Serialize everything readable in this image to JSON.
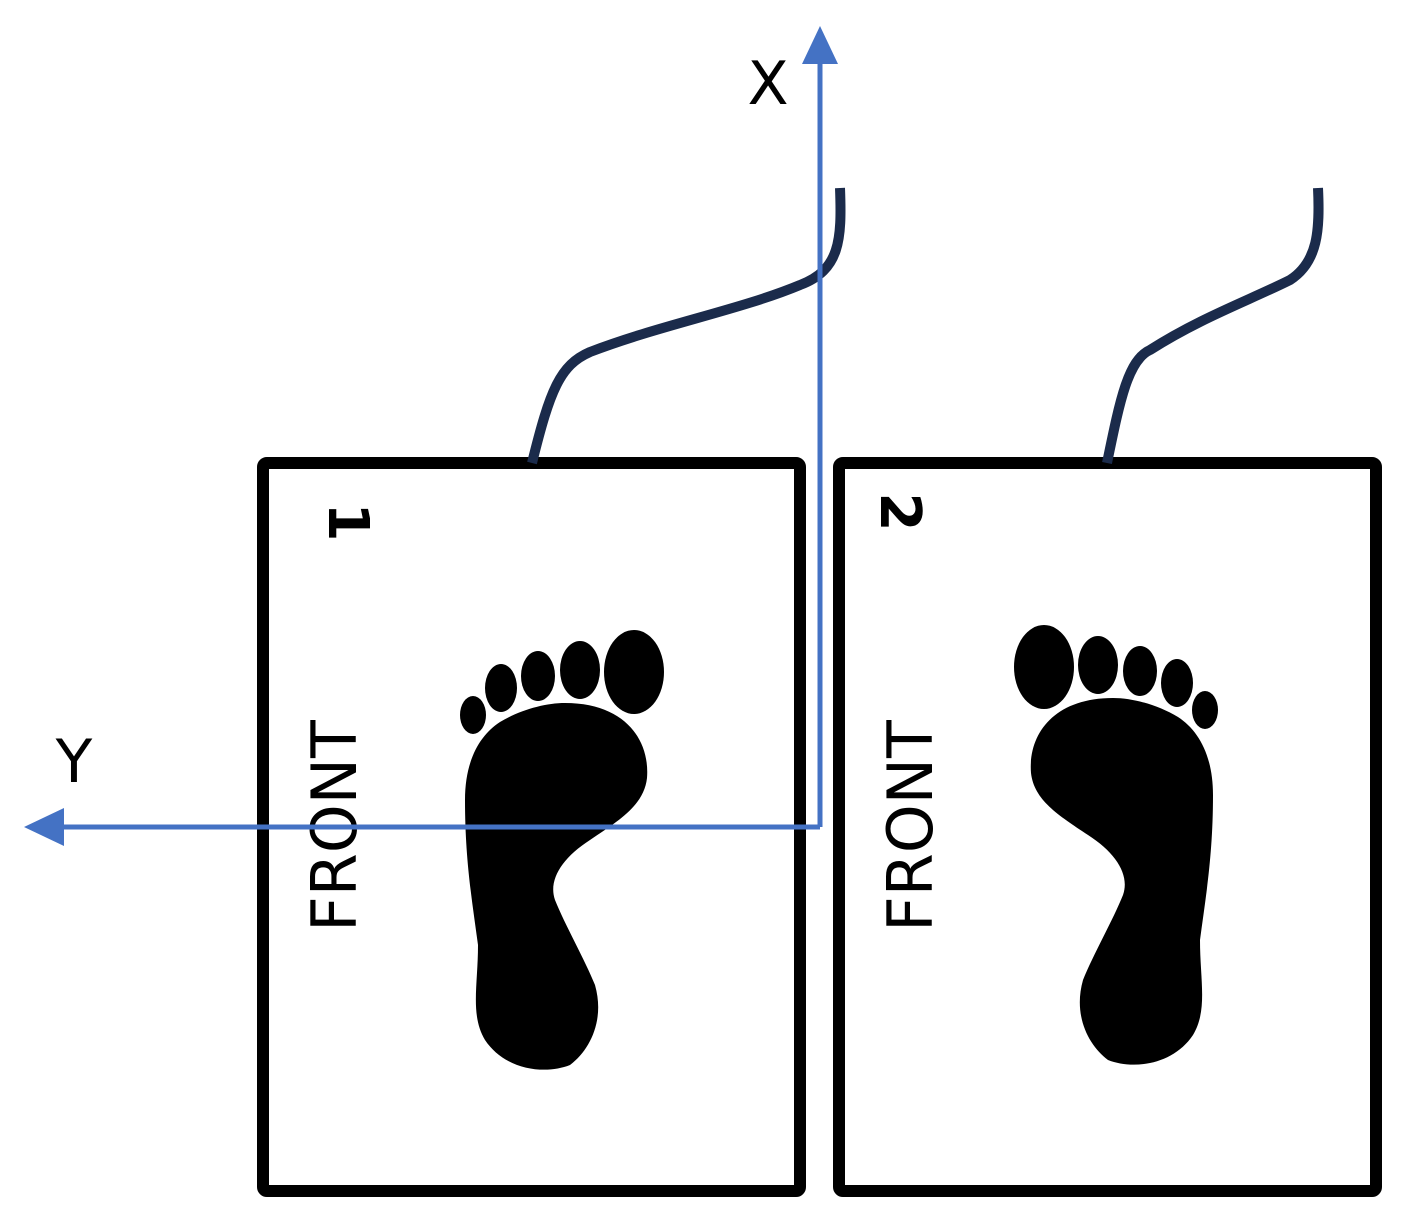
{
  "axes": {
    "x_label": "X",
    "y_label": "Y",
    "color": "#4472c4"
  },
  "plates": [
    {
      "number": "1",
      "label": "FRONT",
      "foot": "left-foot"
    },
    {
      "number": "2",
      "label": "FRONT",
      "foot": "right-foot"
    }
  ],
  "colors": {
    "plate_border": "#000000",
    "cable": "#1b2b4b",
    "footprint": "#000000"
  }
}
